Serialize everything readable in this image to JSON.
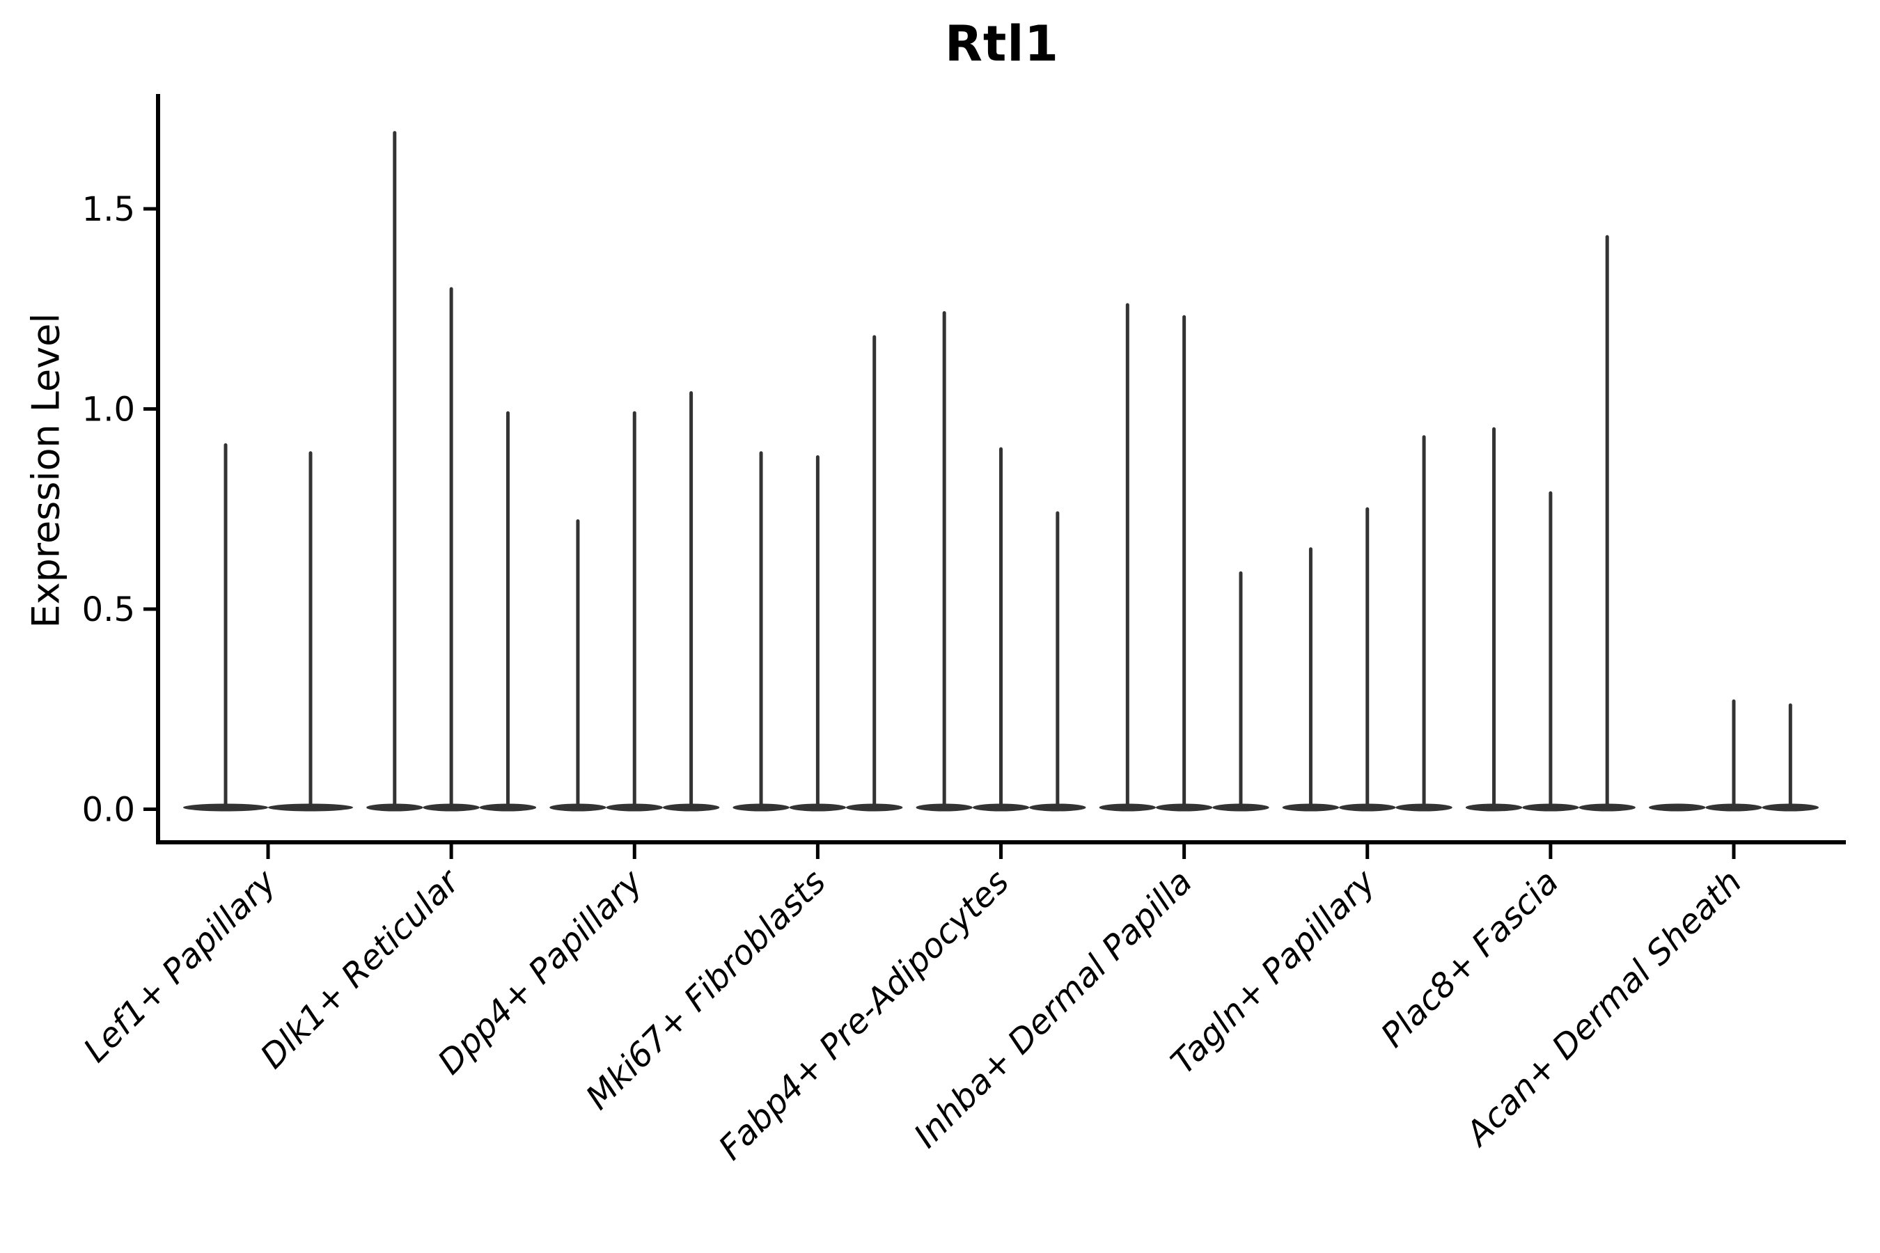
{
  "chart_data": {
    "type": "violin",
    "title": "Rtl1",
    "ylabel": "Expression Level",
    "xlabel": "",
    "ytick_labels": [
      "0.0",
      "0.5",
      "1.0",
      "1.5"
    ],
    "ytick_values": [
      0.0,
      0.5,
      1.0,
      1.5
    ],
    "ylim": [
      -0.085,
      1.787
    ],
    "grid": false,
    "legend_position": "none",
    "categories": [
      {
        "label": "Lef1+ Papillary",
        "violin_max_expression": [
          0.91,
          0.89
        ]
      },
      {
        "label": "Dlk1+ Reticular",
        "violin_max_expression": [
          1.69,
          1.3,
          0.99
        ]
      },
      {
        "label": "Dpp4+ Papillary",
        "violin_max_expression": [
          0.72,
          0.99,
          1.04
        ]
      },
      {
        "label": "Mki67+ Fibroblasts",
        "violin_max_expression": [
          0.89,
          0.88,
          1.18
        ]
      },
      {
        "label": "Fabp4+ Pre-Adipocytes",
        "violin_max_expression": [
          1.24,
          0.9,
          0.74
        ]
      },
      {
        "label": "Inhba+ Dermal Papilla",
        "violin_max_expression": [
          1.26,
          1.23,
          0.59
        ]
      },
      {
        "label": "Tagln+ Papillary",
        "violin_max_expression": [
          0.65,
          0.75,
          0.93
        ]
      },
      {
        "label": "Plac8+ Fascia",
        "violin_max_expression": [
          0.95,
          0.79,
          1.43
        ]
      },
      {
        "label": "Acan+ Dermal Sheath",
        "violin_max_expression": [
          0.0,
          0.27,
          0.26
        ]
      }
    ],
    "colors": {
      "violin": "#333333",
      "axis": "#000000",
      "text": "#000000",
      "background": "#ffffff"
    }
  }
}
